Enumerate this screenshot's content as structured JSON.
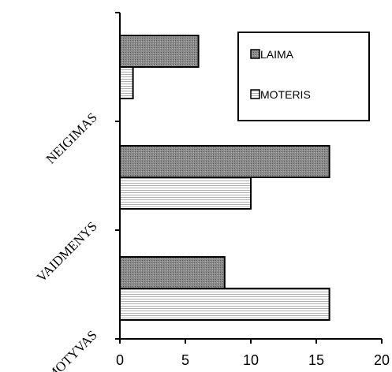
{
  "chart_data": {
    "type": "bar",
    "orientation": "horizontal",
    "categories": [
      "NEIGIMAS",
      "VAIDMENYS",
      "MOTYVAS"
    ],
    "series": [
      {
        "name": "LAIMA",
        "values": [
          6,
          16,
          8
        ],
        "color": "#7f7f7f",
        "pattern": "dotted-gray"
      },
      {
        "name": "MOTERIS",
        "values": [
          1,
          10,
          16
        ],
        "color": "#f2f2f2",
        "pattern": "horizontal-lines"
      }
    ],
    "xlim": [
      0,
      20
    ],
    "xticks": [
      "0",
      "5",
      "10",
      "15",
      "20"
    ],
    "title": "",
    "xlabel": "",
    "ylabel": "",
    "grid": false,
    "legend": "top-right"
  }
}
